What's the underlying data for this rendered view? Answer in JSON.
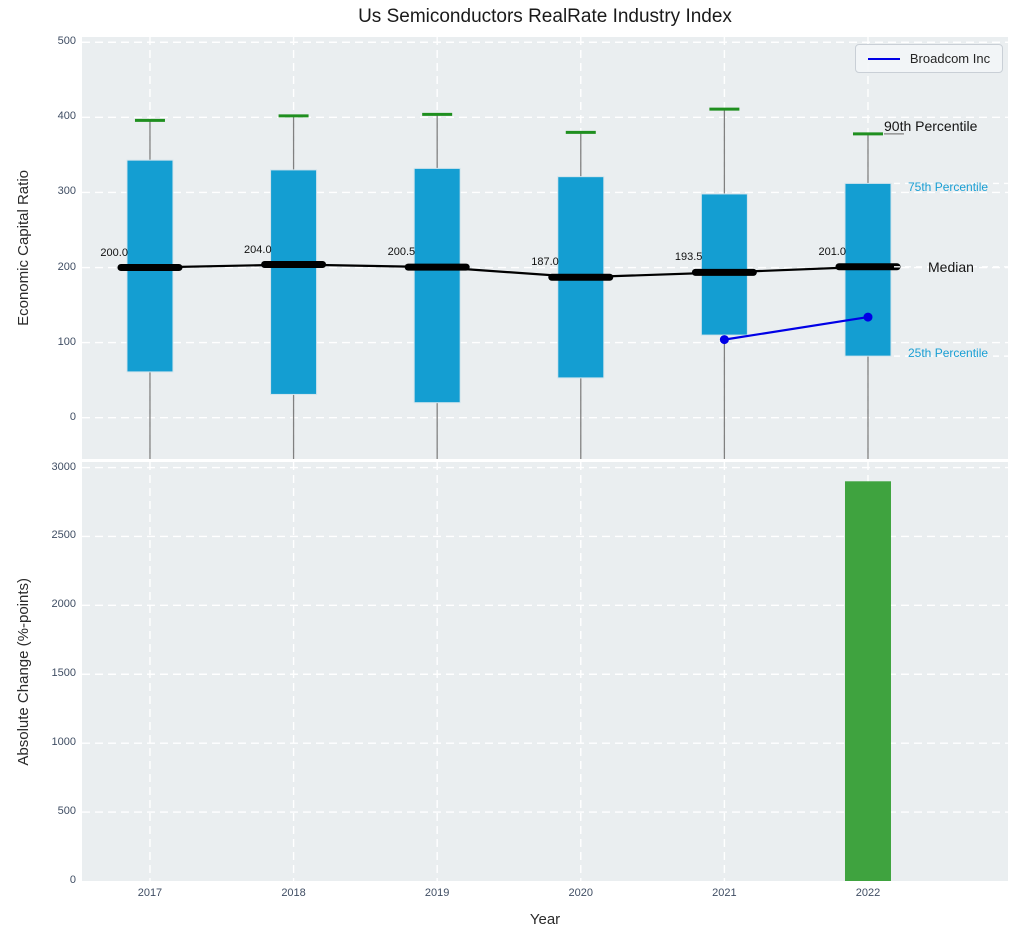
{
  "title": "Us Semiconductors RealRate Industry Index",
  "legend": {
    "label": "Broadcom Inc"
  },
  "colors": {
    "box": "#149ed2",
    "box_edge": "#d3e4ec",
    "cap": "#1f8f1f",
    "bar": "#3fa33f",
    "median": "#000000",
    "broadcom": "#0000e6",
    "whisker": "#808080",
    "plot_bg": "#eaeef0",
    "grid": "#ffffff",
    "tick": "#3f4d63",
    "annotation_percentile": "#1a9fd4"
  },
  "annotations": {
    "p90": "90th Percentile",
    "p75": "75th Percentile",
    "median": "Median",
    "p25": "25th Percentile"
  },
  "chart_data": [
    {
      "type": "box",
      "ylabel": "Economic Capital Ratio",
      "categories": [
        "2017",
        "2018",
        "2019",
        "2020",
        "2021",
        "2022"
      ],
      "yticks": [
        0,
        100,
        200,
        300,
        400,
        500
      ],
      "ylim": [
        -55,
        507
      ],
      "grid": true,
      "legend_position": "upper right",
      "series": {
        "p90": [
          396,
          402,
          404,
          380,
          411,
          378
        ],
        "q3": [
          343,
          330,
          332,
          321,
          298,
          312
        ],
        "median": [
          200.0,
          204.0,
          200.5,
          187.0,
          193.5,
          201.0
        ],
        "q1": [
          61,
          31,
          20,
          53,
          110,
          82
        ]
      },
      "median_labels": [
        "200.0",
        "204.0",
        "200.5",
        "187.0",
        "193.5",
        "201.0"
      ],
      "broadcom_line": {
        "name": "Broadcom Inc",
        "points": [
          {
            "year": "2021",
            "value": 104
          },
          {
            "year": "2022",
            "value": 134
          }
        ]
      }
    },
    {
      "type": "bar",
      "ylabel": "Absolute Change (%-points)",
      "xlabel": "Year",
      "categories": [
        "2017",
        "2018",
        "2019",
        "2020",
        "2021",
        "2022"
      ],
      "yticks": [
        0,
        500,
        1000,
        1500,
        2000,
        2500,
        3000
      ],
      "ylim": [
        0,
        3040
      ],
      "grid": true,
      "values": [
        null,
        null,
        null,
        null,
        null,
        2900
      ]
    }
  ]
}
